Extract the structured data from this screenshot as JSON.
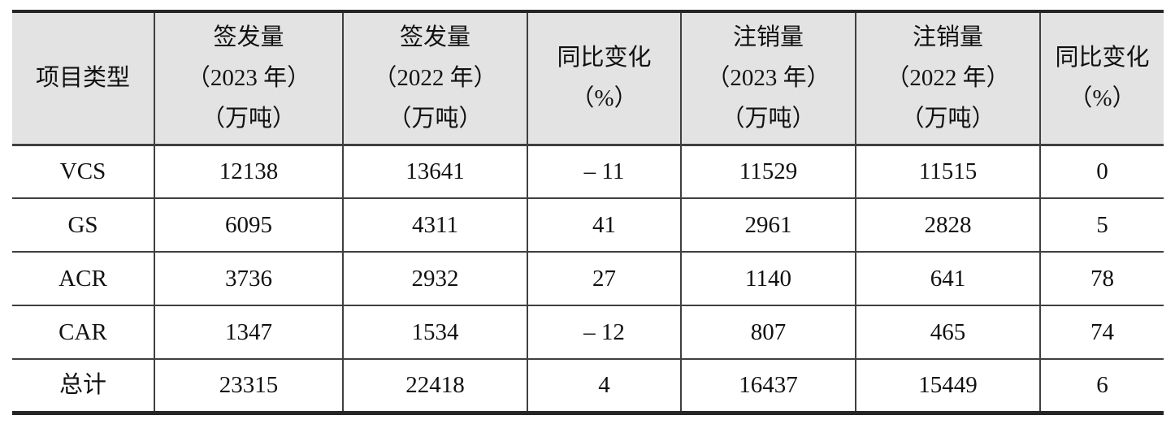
{
  "colors": {
    "header_bg": "#e3e3e3",
    "grid_line": "#3f3f3f",
    "outer_rule": "#262626"
  },
  "chart_data": {
    "type": "table",
    "columns": [
      "项目类型",
      "签发量（2023 年）（万吨）",
      "签发量（2022 年）（万吨）",
      "同比变化（%）",
      "注销量（2023 年）（万吨）",
      "注销量（2022 年）（万吨）",
      "同比变化（%）"
    ],
    "rows": [
      [
        "VCS",
        "12138",
        "13641",
        "-11",
        "11529",
        "11515",
        "0"
      ],
      [
        "GS",
        "6095",
        "4311",
        "41",
        "2961",
        "2828",
        "5"
      ],
      [
        "ACR",
        "3736",
        "2932",
        "27",
        "1140",
        "641",
        "78"
      ],
      [
        "CAR",
        "1347",
        "1534",
        "-12",
        "807",
        "465",
        "74"
      ],
      [
        "总计",
        "23315",
        "22418",
        "4",
        "16437",
        "15449",
        "6"
      ]
    ]
  },
  "table": {
    "header": {
      "cells": [
        {
          "lines": [
            "项目类型"
          ]
        },
        {
          "lines": [
            "签发量",
            "（2023 年）",
            "（万吨）"
          ]
        },
        {
          "lines": [
            "签发量",
            "（2022 年）",
            "（万吨）"
          ]
        },
        {
          "lines": [
            "同比变化",
            "（%）"
          ]
        },
        {
          "lines": [
            "注销量",
            "（2023 年）",
            "（万吨）"
          ]
        },
        {
          "lines": [
            "注销量",
            "（2022 年）",
            "（万吨）"
          ]
        },
        {
          "lines": [
            "同比变化",
            "（%）"
          ]
        }
      ]
    },
    "rows": [
      {
        "label": "VCS",
        "is_total": false,
        "values": [
          "12138",
          "13641",
          "– 11",
          "11529",
          "11515",
          "0"
        ]
      },
      {
        "label": "GS",
        "is_total": false,
        "values": [
          "6095",
          "4311",
          "41",
          "2961",
          "2828",
          "5"
        ]
      },
      {
        "label": "ACR",
        "is_total": false,
        "values": [
          "3736",
          "2932",
          "27",
          "1140",
          "641",
          "78"
        ]
      },
      {
        "label": "CAR",
        "is_total": false,
        "values": [
          "1347",
          "1534",
          "– 12",
          "807",
          "465",
          "74"
        ]
      },
      {
        "label": "总计",
        "is_total": true,
        "values": [
          "23315",
          "22418",
          "4",
          "16437",
          "15449",
          "6"
        ]
      }
    ]
  }
}
